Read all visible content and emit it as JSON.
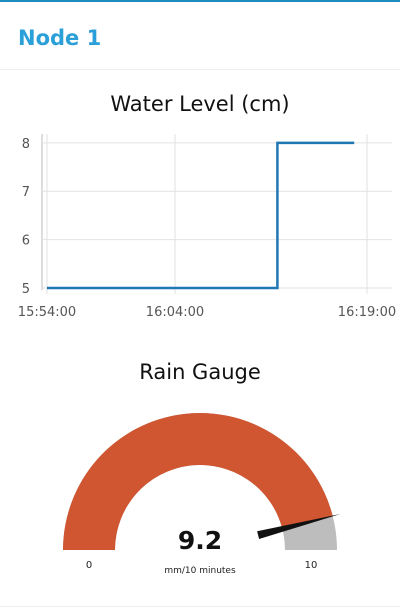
{
  "group": {
    "title": "Node 1"
  },
  "chart_data": {
    "type": "line",
    "title": "Water Level (cm)",
    "xlabel": "",
    "ylabel": "",
    "x_ticks": [
      "15:54:00",
      "16:04:00",
      "16:19:00"
    ],
    "y_ticks": [
      5,
      6,
      7,
      8
    ],
    "ylim": [
      5,
      8.1
    ],
    "xlim": [
      "15:54:00",
      "16:19:00"
    ],
    "grid": true,
    "series": [
      {
        "color": "#1f77b4",
        "x": [
          "15:54:00",
          "16:12:00",
          "16:12:00",
          "16:18:00"
        ],
        "y": [
          5,
          5,
          8,
          8
        ]
      }
    ]
  },
  "gauge": {
    "title": "Rain Gauge",
    "value": "9.2",
    "units": "mm/10 minutes",
    "min": "0",
    "max": "10",
    "level": 0.92,
    "fill_color": "#cf5630",
    "track_color": "#bdbdbd",
    "needle_color": "#111111"
  }
}
